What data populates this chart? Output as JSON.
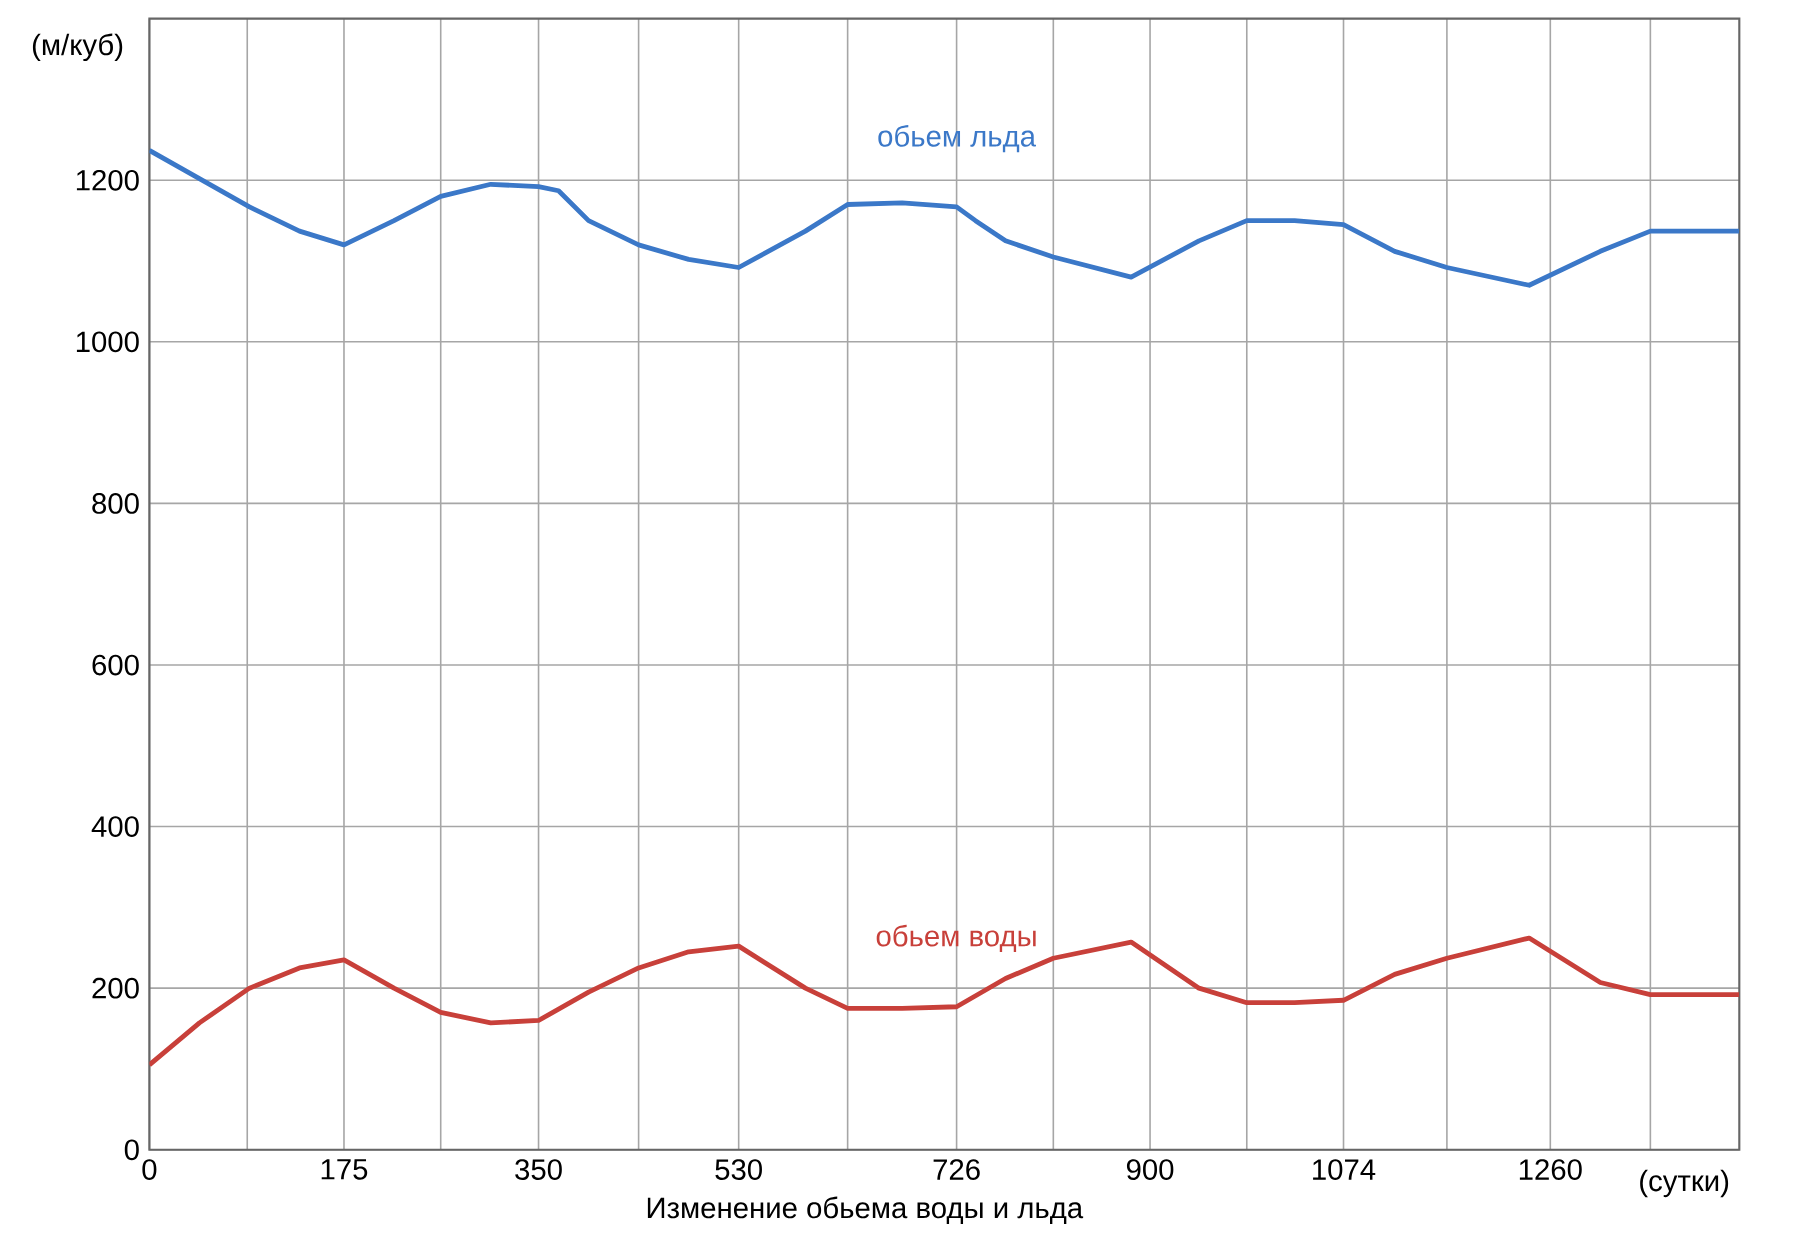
{
  "chart_data": {
    "type": "line",
    "title": "Изменение   обьема воды и льда",
    "xlabel": "(сутки)",
    "ylabel": "(м/куб)",
    "xlim": [
      0,
      1430
    ],
    "ylim": [
      0,
      1400
    ],
    "xticks": [
      0,
      {
        "value": 88,
        "label": null
      },
      175,
      {
        "value": 262,
        "label": null
      },
      350,
      {
        "value": 440,
        "label": null
      },
      530,
      {
        "value": 628,
        "label": null
      },
      726,
      {
        "value": 813,
        "label": null
      },
      900,
      {
        "value": 987,
        "label": null
      },
      1074,
      {
        "value": 1167,
        "label": null
      },
      1260,
      {
        "value": 1350,
        "label": null
      }
    ],
    "yticks": [
      0,
      200,
      400,
      600,
      800,
      1000,
      1200
    ],
    "grid": true,
    "legend": false,
    "marker": "none",
    "line_style": "solid",
    "series": [
      {
        "name": "обьем льда",
        "color": "#3b78c8",
        "x": [
          0,
          90,
          135,
          175,
          220,
          262,
          307,
          350,
          368,
          395,
          440,
          485,
          530,
          590,
          628,
          677,
          726,
          743,
          770,
          813,
          883,
          944,
          987,
          1030,
          1074,
          1120,
          1167,
          1241,
          1305,
          1350,
          1430
        ],
        "values": [
          1237,
          1167,
          1137,
          1120,
          1150,
          1180,
          1195,
          1192,
          1187,
          1150,
          1120,
          1102,
          1092,
          1137,
          1170,
          1172,
          1167,
          1150,
          1125,
          1105,
          1080,
          1125,
          1150,
          1150,
          1145,
          1112,
          1092,
          1070,
          1112,
          1137,
          1137
        ]
      },
      {
        "name": "обьем  воды",
        "color": "#c8403a",
        "x": [
          0,
          45,
          90,
          135,
          175,
          220,
          262,
          307,
          350,
          395,
          440,
          485,
          530,
          590,
          628,
          677,
          726,
          770,
          813,
          883,
          944,
          987,
          1030,
          1074,
          1120,
          1167,
          1241,
          1305,
          1350,
          1430
        ],
        "values": [
          105,
          157,
          200,
          225,
          235,
          200,
          170,
          157,
          160,
          195,
          225,
          245,
          252,
          200,
          175,
          175,
          177,
          212,
          237,
          257,
          200,
          182,
          182,
          185,
          217,
          237,
          262,
          207,
          192,
          192
        ]
      }
    ]
  }
}
